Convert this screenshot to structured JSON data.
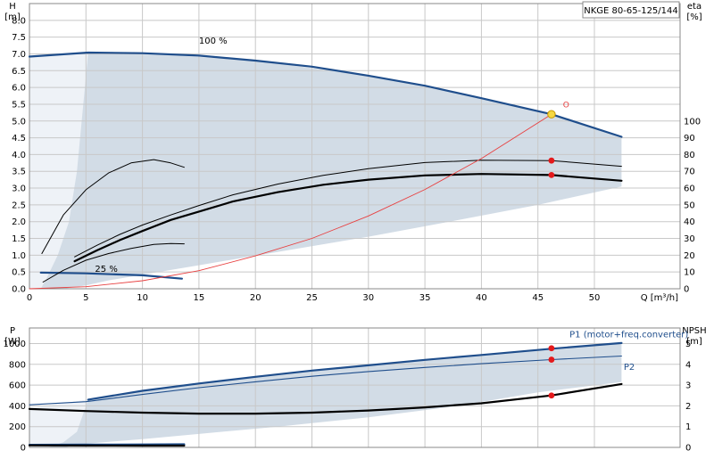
{
  "title_box": "NKGE 80-65-125/144",
  "colors": {
    "envelope": "#d2dce6",
    "envelope_light": "#eef2f7",
    "curve_blue": "#1f4e8c",
    "system_red": "#e84040",
    "dot_red": "#e41a1c",
    "dot_yellow": "#f5d742"
  },
  "chart_data": [
    {
      "id": "upper",
      "type": "line",
      "xlabel": "Q [m³/h]",
      "ylabel_left": [
        "H",
        "[m]"
      ],
      "ylabel_right": [
        "eta",
        "[%]"
      ],
      "xlim": [
        0,
        60
      ],
      "ylim": [
        0,
        8.5
      ],
      "xticks": [
        0,
        5,
        10,
        15,
        20,
        25,
        30,
        35,
        40,
        45,
        50
      ],
      "yticks": [
        0,
        0.5,
        1.0,
        1.5,
        2.0,
        2.5,
        3.0,
        3.5,
        4.0,
        4.5,
        5.0,
        5.5,
        6.0,
        6.5,
        7.0,
        7.5,
        8.0
      ],
      "ytick_labels": [
        "0.0",
        "0.5",
        "1.0",
        "1.5",
        "2.0",
        "2.5",
        "3.0",
        "3.5",
        "4.0",
        "4.5",
        "5.0",
        "5.5",
        "6.0",
        "6.5",
        "7.0",
        "7.5",
        "8.0"
      ],
      "eta_ticks": [
        0,
        10,
        20,
        30,
        40,
        50,
        60,
        70,
        80,
        90,
        100
      ],
      "eta_scale": [
        0,
        100,
        0,
        5.0
      ],
      "envelope": [
        [
          0,
          0
        ],
        [
          0,
          6.92
        ],
        [
          5.2,
          7.04
        ],
        [
          10,
          7.02
        ],
        [
          20,
          6.8
        ],
        [
          30,
          6.35
        ],
        [
          40,
          5.68
        ],
        [
          46.2,
          5.2
        ],
        [
          52.4,
          4.53
        ],
        [
          52.4,
          3.05
        ],
        [
          45,
          2.5
        ],
        [
          38,
          2.05
        ],
        [
          30,
          1.55
        ],
        [
          22,
          1.1
        ],
        [
          15,
          0.7
        ],
        [
          10,
          0.42
        ],
        [
          7,
          0.25
        ],
        [
          5,
          0.1
        ],
        [
          3,
          0
        ]
      ],
      "envelope_light": [
        [
          0,
          0
        ],
        [
          0,
          6.92
        ],
        [
          5.2,
          7.04
        ],
        [
          4.2,
          3.5
        ],
        [
          3.5,
          2
        ],
        [
          2.5,
          1
        ],
        [
          1.5,
          0.3
        ],
        [
          1,
          0
        ]
      ],
      "annotations": [
        {
          "text": "100 %",
          "x": 15,
          "y": 7.3
        },
        {
          "text": "25 %",
          "x": 5.8,
          "y": 0.5
        },
        {
          "text": "O",
          "x": 47.5,
          "y": 5.4
        }
      ],
      "series": [
        {
          "style": "blue",
          "points": [
            [
              0,
              6.92
            ],
            [
              5.2,
              7.04
            ],
            [
              10,
              7.02
            ],
            [
              15,
              6.95
            ],
            [
              20,
              6.8
            ],
            [
              25,
              6.62
            ],
            [
              30,
              6.35
            ],
            [
              35,
              6.05
            ],
            [
              40,
              5.68
            ],
            [
              46.2,
              5.2
            ],
            [
              52.4,
              4.53
            ]
          ]
        },
        {
          "style": "blue",
          "points": [
            [
              1,
              0.48
            ],
            [
              5,
              0.46
            ],
            [
              10,
              0.4
            ],
            [
              13.5,
              0.3
            ]
          ]
        },
        {
          "style": "thin",
          "points": [
            [
              1.1,
              1.05
            ],
            [
              3,
              2.2
            ],
            [
              5,
              2.95
            ],
            [
              7,
              3.45
            ],
            [
              9,
              3.75
            ],
            [
              11,
              3.85
            ],
            [
              12.5,
              3.75
            ],
            [
              13.7,
              3.62
            ]
          ]
        },
        {
          "style": "thin",
          "points": [
            [
              4,
              0.95
            ],
            [
              6,
              1.3
            ],
            [
              8,
              1.62
            ],
            [
              10,
              1.9
            ],
            [
              12.5,
              2.2
            ],
            [
              15,
              2.48
            ],
            [
              18,
              2.8
            ],
            [
              22,
              3.12
            ],
            [
              26,
              3.38
            ],
            [
              30,
              3.58
            ],
            [
              35,
              3.76
            ],
            [
              40,
              3.83
            ],
            [
              46.2,
              3.82
            ],
            [
              52.4,
              3.65
            ]
          ]
        },
        {
          "style": "thick",
          "points": [
            [
              4,
              0.82
            ],
            [
              6,
              1.15
            ],
            [
              8,
              1.45
            ],
            [
              10,
              1.72
            ],
            [
              12.5,
              2.05
            ],
            [
              15,
              2.3
            ],
            [
              18,
              2.6
            ],
            [
              22,
              2.88
            ],
            [
              26,
              3.1
            ],
            [
              30,
              3.25
            ],
            [
              35,
              3.38
            ],
            [
              40,
              3.42
            ],
            [
              46.2,
              3.39
            ],
            [
              52.4,
              3.22
            ]
          ]
        },
        {
          "style": "thin",
          "points": [
            [
              1.2,
              0.2
            ],
            [
              3,
              0.55
            ],
            [
              5,
              0.85
            ],
            [
              7,
              1.05
            ],
            [
              9,
              1.2
            ],
            [
              11,
              1.32
            ],
            [
              12.5,
              1.35
            ],
            [
              13.7,
              1.34
            ]
          ]
        },
        {
          "style": "red",
          "points": [
            [
              0,
              0
            ],
            [
              5,
              0.06
            ],
            [
              10,
              0.24
            ],
            [
              15,
              0.54
            ],
            [
              20,
              0.98
            ],
            [
              25,
              1.5
            ],
            [
              30,
              2.17
            ],
            [
              35,
              2.96
            ],
            [
              40,
              3.88
            ],
            [
              46.2,
              5.2
            ]
          ]
        }
      ],
      "markers": [
        {
          "x": 46.2,
          "y": 5.2,
          "kind": "yellow"
        },
        {
          "x": 46.2,
          "y": 3.82,
          "kind": "red"
        },
        {
          "x": 46.2,
          "y": 3.39,
          "kind": "red"
        }
      ]
    },
    {
      "id": "lower",
      "type": "line",
      "xlabel": "",
      "ylabel_left": [
        "P",
        "[W]"
      ],
      "ylabel_right": [
        "NPSH",
        "[m]"
      ],
      "xlim": [
        0,
        60
      ],
      "ylim": [
        0,
        1150
      ],
      "yticks": [
        0,
        200,
        400,
        600,
        800,
        1000
      ],
      "ytick_labels": [
        "0",
        "200",
        "400",
        "600",
        "800",
        "1000"
      ],
      "npsh_ticks": [
        0,
        1,
        2,
        3,
        4,
        5
      ],
      "npsh_scale": [
        0,
        5,
        0,
        1000
      ],
      "envelope": [
        [
          0,
          0
        ],
        [
          0,
          375
        ],
        [
          5.2,
          460
        ],
        [
          10,
          545
        ],
        [
          20,
          680
        ],
        [
          30,
          790
        ],
        [
          40,
          890
        ],
        [
          46.2,
          950
        ],
        [
          52.4,
          1005
        ],
        [
          52.4,
          630
        ],
        [
          45,
          530
        ],
        [
          38,
          400
        ],
        [
          30,
          290
        ],
        [
          22,
          200
        ],
        [
          15,
          130
        ],
        [
          10,
          80
        ],
        [
          5,
          35
        ],
        [
          3,
          0
        ]
      ],
      "envelope_light": [
        [
          0,
          0
        ],
        [
          0,
          375
        ],
        [
          5.2,
          460
        ],
        [
          4.2,
          150
        ],
        [
          3,
          50
        ],
        [
          2,
          10
        ],
        [
          1.5,
          0
        ]
      ],
      "annotations": [
        {
          "text": "P1 (motor+freq.converter)",
          "x": 47.8,
          "y": 1060,
          "color": "blue"
        },
        {
          "text": "P2",
          "x": 52.6,
          "y": 745,
          "color": "blue"
        }
      ],
      "series": [
        {
          "style": "blue",
          "points": [
            [
              5.2,
              460
            ],
            [
              10,
              545
            ],
            [
              15,
              615
            ],
            [
              20,
              680
            ],
            [
              25,
              740
            ],
            [
              30,
              790
            ],
            [
              35,
              843
            ],
            [
              40,
              890
            ],
            [
              46.2,
              950
            ],
            [
              52.4,
              1005
            ]
          ]
        },
        {
          "style": "blue_thin",
          "points": [
            [
              0,
              410
            ],
            [
              5,
              440
            ],
            [
              10,
              510
            ],
            [
              15,
              575
            ],
            [
              20,
              632
            ],
            [
              25,
              685
            ],
            [
              30,
              730
            ],
            [
              35,
              770
            ],
            [
              40,
              806
            ],
            [
              46.2,
              845
            ],
            [
              52.4,
              880
            ]
          ]
        },
        {
          "style": "thick",
          "points": [
            [
              0,
              370
            ],
            [
              5,
              350
            ],
            [
              10,
              335
            ],
            [
              15,
              325
            ],
            [
              20,
              325
            ],
            [
              25,
              335
            ],
            [
              30,
              355
            ],
            [
              35,
              385
            ],
            [
              40,
              425
            ],
            [
              46.2,
              500
            ],
            [
              52.4,
              610
            ]
          ]
        },
        {
          "style": "blue",
          "points": [
            [
              0,
              25
            ],
            [
              5,
              27
            ],
            [
              10,
              28
            ],
            [
              13.7,
              30
            ]
          ]
        },
        {
          "style": "thick",
          "points": [
            [
              0,
              20
            ],
            [
              5,
              18
            ],
            [
              10,
              17
            ],
            [
              13.7,
              17
            ]
          ]
        }
      ],
      "markers": [
        {
          "x": 46.2,
          "y": 955,
          "kind": "red"
        },
        {
          "x": 46.2,
          "y": 845,
          "kind": "red"
        },
        {
          "x": 46.2,
          "y": 500,
          "kind": "red"
        }
      ]
    }
  ]
}
